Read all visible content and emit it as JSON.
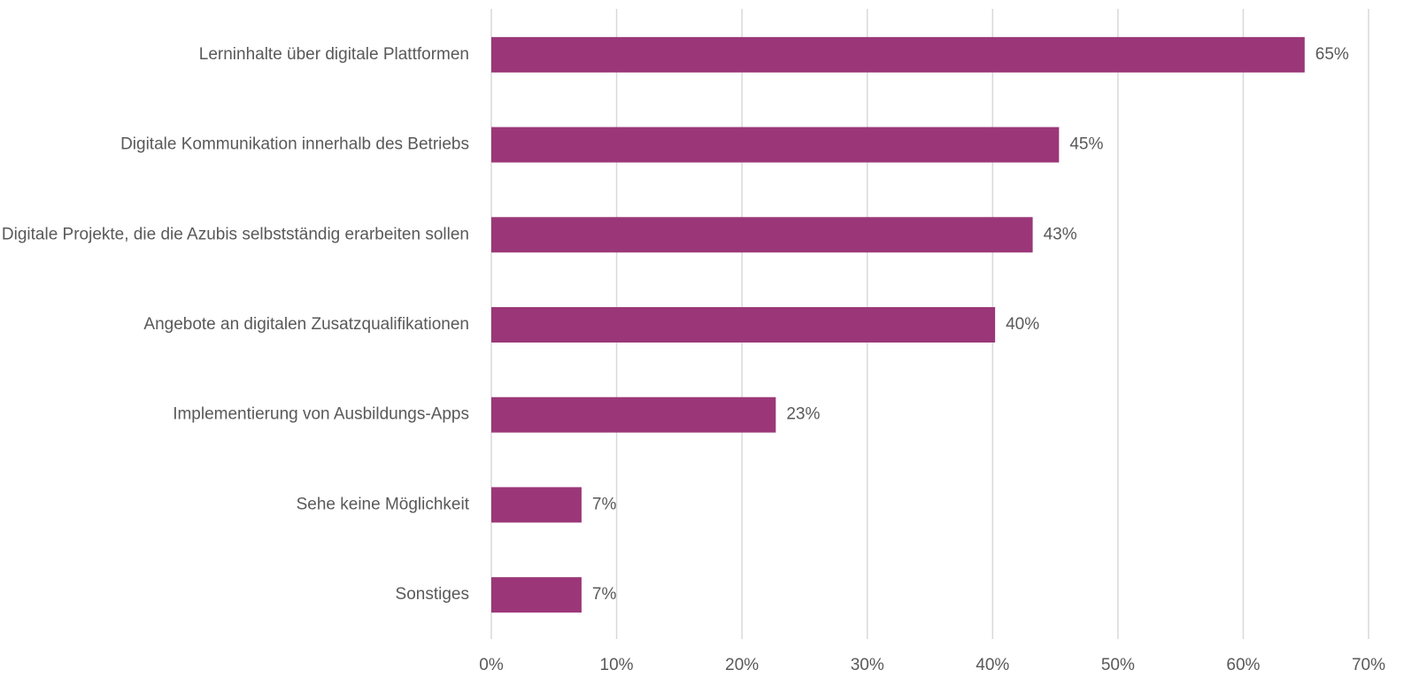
{
  "chart_data": {
    "type": "bar",
    "orientation": "horizontal",
    "categories": [
      "Lerninhalte über digitale Plattformen",
      "Digitale Kommunikation innerhalb des Betriebs",
      "Digitale Projekte, die die Azubis selbstständig erarbeiten sollen",
      "Angebote an digitalen Zusatzqualifikationen",
      "Implementierung von Ausbildungs-Apps",
      "Sehe keine Möglichkeit",
      "Sonstiges"
    ],
    "values": [
      64.9,
      45.3,
      43.2,
      40.2,
      22.7,
      7.2,
      7.2
    ],
    "value_labels": [
      "65%",
      "45%",
      "43%",
      "40%",
      "23%",
      "7%",
      "7%"
    ],
    "color": "#9b3778",
    "xlim": [
      0,
      70
    ],
    "xticks": [
      {
        "value": 0,
        "label": "0%"
      },
      {
        "value": 10,
        "label": "10%"
      },
      {
        "value": 20,
        "label": "20%"
      },
      {
        "value": 30,
        "label": "30%"
      },
      {
        "value": 40,
        "label": "40%"
      },
      {
        "value": 50,
        "label": "50%"
      },
      {
        "value": 60,
        "label": "60%"
      },
      {
        "value": 70,
        "label": "70%"
      }
    ],
    "grid": true
  }
}
